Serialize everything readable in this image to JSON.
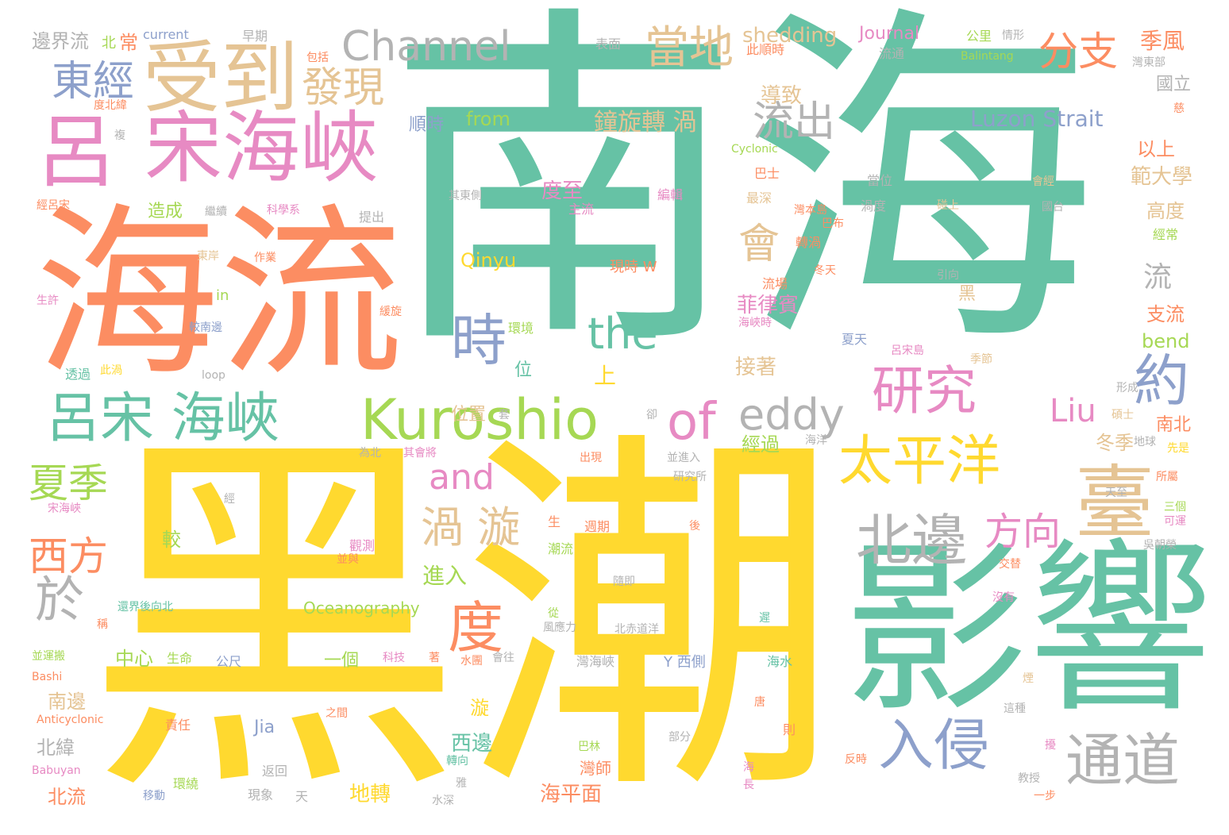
{
  "palette": {
    "green": "#66c2a5",
    "yellow": "#ffd92f",
    "orange": "#fc8d62",
    "pink": "#e78ac3",
    "blue": "#8da0cb",
    "lime": "#a6d854",
    "tan": "#e5c494",
    "gray": "#b3b3b3"
  },
  "words": [
    {
      "t": "南海",
      "c": "green"
    },
    {
      "t": "黑潮",
      "c": "yellow"
    },
    {
      "t": "海流",
      "c": "orange"
    },
    {
      "t": "影響",
      "c": "green"
    },
    {
      "t": "宋海峽",
      "c": "pink"
    },
    {
      "t": "受到",
      "c": "tan"
    },
    {
      "t": "呂",
      "c": "pink"
    },
    {
      "t": "Channel",
      "c": "gray"
    },
    {
      "t": "東經",
      "c": "blue"
    },
    {
      "t": "發現",
      "c": "tan"
    },
    {
      "t": "當地",
      "c": "tan"
    },
    {
      "t": "分支",
      "c": "orange"
    },
    {
      "t": "季風",
      "c": "orange"
    },
    {
      "t": "邊界流",
      "c": "gray"
    },
    {
      "t": "北",
      "c": "lime"
    },
    {
      "t": "常",
      "c": "orange"
    },
    {
      "t": "current",
      "c": "blue"
    },
    {
      "t": "早期",
      "c": "gray"
    },
    {
      "t": "shedding",
      "c": "tan"
    },
    {
      "t": "Journal",
      "c": "pink"
    },
    {
      "t": "公里",
      "c": "lime"
    },
    {
      "t": "情形",
      "c": "gray"
    },
    {
      "t": "表面",
      "c": "gray"
    },
    {
      "t": "包括",
      "c": "orange"
    },
    {
      "t": "此順時",
      "c": "orange"
    },
    {
      "t": "流通",
      "c": "gray"
    },
    {
      "t": "Balintang",
      "c": "lime"
    },
    {
      "t": "灣東部",
      "c": "gray"
    },
    {
      "t": "國立",
      "c": "gray"
    },
    {
      "t": "導致",
      "c": "tan"
    },
    {
      "t": "流出",
      "c": "gray"
    },
    {
      "t": "Luzon Strait",
      "c": "blue"
    },
    {
      "t": "鐘旋轉 渦",
      "c": "tan"
    },
    {
      "t": "順時",
      "c": "blue"
    },
    {
      "t": "from",
      "c": "lime"
    },
    {
      "t": "度北緯",
      "c": "orange"
    },
    {
      "t": "以上",
      "c": "orange"
    },
    {
      "t": "範大學",
      "c": "tan"
    },
    {
      "t": "Cyclonic",
      "c": "lime"
    },
    {
      "t": "巴士",
      "c": "orange"
    },
    {
      "t": "當位",
      "c": "gray"
    },
    {
      "t": "其東側",
      "c": "gray"
    },
    {
      "t": "度至",
      "c": "pink"
    },
    {
      "t": "編輯",
      "c": "pink"
    },
    {
      "t": "會經",
      "c": "tan"
    },
    {
      "t": "造成",
      "c": "lime"
    },
    {
      "t": "主流",
      "c": "pink"
    },
    {
      "t": "最深",
      "c": "tan"
    },
    {
      "t": "渦度",
      "c": "gray"
    },
    {
      "t": "灣本島",
      "c": "orange"
    },
    {
      "t": "碰上",
      "c": "tan"
    },
    {
      "t": "國台",
      "c": "gray"
    },
    {
      "t": "高度",
      "c": "tan"
    },
    {
      "t": "經呂宋",
      "c": "orange"
    },
    {
      "t": "繼續",
      "c": "gray"
    },
    {
      "t": "科學系",
      "c": "pink"
    },
    {
      "t": "提出",
      "c": "gray"
    },
    {
      "t": "巴布",
      "c": "orange"
    },
    {
      "t": "經常",
      "c": "lime"
    },
    {
      "t": "會",
      "c": "tan"
    },
    {
      "t": "轉渦",
      "c": "orange"
    },
    {
      "t": "Qinyu",
      "c": "yellow"
    },
    {
      "t": "東岸",
      "c": "tan"
    },
    {
      "t": "作業",
      "c": "orange"
    },
    {
      "t": "現時 W",
      "c": "orange"
    },
    {
      "t": "冬天",
      "c": "orange"
    },
    {
      "t": "引向",
      "c": "gray"
    },
    {
      "t": "流",
      "c": "gray"
    },
    {
      "t": "生許",
      "c": "pink"
    },
    {
      "t": "in",
      "c": "lime"
    },
    {
      "t": "流場",
      "c": "orange"
    },
    {
      "t": "菲律賓",
      "c": "pink"
    },
    {
      "t": "黑",
      "c": "tan"
    },
    {
      "t": "支流",
      "c": "orange"
    },
    {
      "t": "緩旋",
      "c": "orange"
    },
    {
      "t": "時",
      "c": "blue"
    },
    {
      "t": "the",
      "c": "green"
    },
    {
      "t": "海峽時",
      "c": "pink"
    },
    {
      "t": "夏天",
      "c": "blue"
    },
    {
      "t": "bend",
      "c": "lime"
    },
    {
      "t": "較南邊",
      "c": "blue"
    },
    {
      "t": "環境",
      "c": "lime"
    },
    {
      "t": "呂宋島",
      "c": "pink"
    },
    {
      "t": "季節",
      "c": "tan"
    },
    {
      "t": "透過",
      "c": "green"
    },
    {
      "t": "此渦",
      "c": "yellow"
    },
    {
      "t": "loop",
      "c": "gray"
    },
    {
      "t": "位",
      "c": "green"
    },
    {
      "t": "上",
      "c": "yellow"
    },
    {
      "t": "接著",
      "c": "tan"
    },
    {
      "t": "形成",
      "c": "gray"
    },
    {
      "t": "約",
      "c": "blue"
    },
    {
      "t": "研究",
      "c": "pink"
    },
    {
      "t": "Liu",
      "c": "pink"
    },
    {
      "t": "呂宋 海峽",
      "c": "green"
    },
    {
      "t": "Kuroshio",
      "c": "lime"
    },
    {
      "t": "of",
      "c": "pink"
    },
    {
      "t": "eddy",
      "c": "gray"
    },
    {
      "t": "位置",
      "c": "tan"
    },
    {
      "t": "卻",
      "c": "gray"
    },
    {
      "t": "碩士",
      "c": "tan"
    },
    {
      "t": "海洋",
      "c": "gray"
    },
    {
      "t": "地球",
      "c": "gray"
    },
    {
      "t": "南北",
      "c": "orange"
    },
    {
      "t": "為北",
      "c": "gray"
    },
    {
      "t": "其會將",
      "c": "pink"
    },
    {
      "t": "出現",
      "c": "orange"
    },
    {
      "t": "並進入",
      "c": "gray"
    },
    {
      "t": "經過",
      "c": "lime"
    },
    {
      "t": "冬季",
      "c": "tan"
    },
    {
      "t": "先是",
      "c": "yellow"
    },
    {
      "t": "夏季",
      "c": "lime"
    },
    {
      "t": "and",
      "c": "pink"
    },
    {
      "t": "太平洋",
      "c": "yellow"
    },
    {
      "t": "臺",
      "c": "tan"
    },
    {
      "t": "研究所",
      "c": "gray"
    },
    {
      "t": "天至",
      "c": "gray"
    },
    {
      "t": "所屬",
      "c": "orange"
    },
    {
      "t": "宋海峽",
      "c": "pink"
    },
    {
      "t": "經",
      "c": "gray"
    },
    {
      "t": "渦 漩",
      "c": "tan"
    },
    {
      "t": "北邊",
      "c": "gray"
    },
    {
      "t": "方向",
      "c": "pink"
    },
    {
      "t": "三個",
      "c": "lime"
    },
    {
      "t": "可運",
      "c": "pink"
    },
    {
      "t": "西方",
      "c": "orange"
    },
    {
      "t": "較",
      "c": "lime"
    },
    {
      "t": "觀測",
      "c": "pink"
    },
    {
      "t": "生",
      "c": "orange"
    },
    {
      "t": "週期",
      "c": "orange"
    },
    {
      "t": "後",
      "c": "orange"
    },
    {
      "t": "潮流",
      "c": "lime"
    },
    {
      "t": "吳朝榮",
      "c": "gray"
    },
    {
      "t": "於",
      "c": "gray"
    },
    {
      "t": "並與",
      "c": "orange"
    },
    {
      "t": "進入",
      "c": "lime"
    },
    {
      "t": "隨即",
      "c": "gray"
    },
    {
      "t": "交替",
      "c": "orange"
    },
    {
      "t": "Oceanography",
      "c": "lime"
    },
    {
      "t": "沒有",
      "c": "pink"
    },
    {
      "t": "還界後向北",
      "c": "green"
    },
    {
      "t": "從",
      "c": "lime"
    },
    {
      "t": "遲",
      "c": "green"
    },
    {
      "t": "稱",
      "c": "orange"
    },
    {
      "t": "度",
      "c": "orange"
    },
    {
      "t": "風應力",
      "c": "gray"
    },
    {
      "t": "北赤道洋",
      "c": "gray"
    },
    {
      "t": "入侵",
      "c": "blue"
    },
    {
      "t": "通道",
      "c": "gray"
    },
    {
      "t": "中心",
      "c": "lime"
    },
    {
      "t": "生命",
      "c": "lime"
    },
    {
      "t": "公尺",
      "c": "blue"
    },
    {
      "t": "一個",
      "c": "lime"
    },
    {
      "t": "科技",
      "c": "pink"
    },
    {
      "t": "著",
      "c": "orange"
    },
    {
      "t": "水團",
      "c": "orange"
    },
    {
      "t": "會往",
      "c": "gray"
    },
    {
      "t": "灣海峽",
      "c": "gray"
    },
    {
      "t": "Y 西側",
      "c": "blue"
    },
    {
      "t": "海水",
      "c": "green"
    },
    {
      "t": "並運搬",
      "c": "lime"
    },
    {
      "t": "Bashi",
      "c": "orange"
    },
    {
      "t": "南邊",
      "c": "tan"
    },
    {
      "t": "漩",
      "c": "yellow"
    },
    {
      "t": "唐",
      "c": "orange"
    },
    {
      "t": "這種",
      "c": "gray"
    },
    {
      "t": "Anticyclonic",
      "c": "orange"
    },
    {
      "t": "責任",
      "c": "orange"
    },
    {
      "t": "之間",
      "c": "orange"
    },
    {
      "t": "Jia",
      "c": "blue"
    },
    {
      "t": "西邊",
      "c": "green"
    },
    {
      "t": "部分",
      "c": "gray"
    },
    {
      "t": "則",
      "c": "orange"
    },
    {
      "t": "北緯",
      "c": "gray"
    },
    {
      "t": "巴林",
      "c": "lime"
    },
    {
      "t": "Babuyan",
      "c": "pink"
    },
    {
      "t": "返回",
      "c": "gray"
    },
    {
      "t": "轉向",
      "c": "green"
    },
    {
      "t": "灣師",
      "c": "orange"
    },
    {
      "t": "海",
      "c": "pink"
    },
    {
      "t": "長",
      "c": "pink"
    },
    {
      "t": "反時",
      "c": "orange"
    },
    {
      "t": "環繞",
      "c": "lime"
    },
    {
      "t": "北流",
      "c": "orange"
    },
    {
      "t": "移動",
      "c": "blue"
    },
    {
      "t": "現象",
      "c": "gray"
    },
    {
      "t": "天",
      "c": "gray"
    },
    {
      "t": "雅",
      "c": "gray"
    },
    {
      "t": "水深",
      "c": "gray"
    },
    {
      "t": "地轉",
      "c": "yellow"
    },
    {
      "t": "海平面",
      "c": "orange"
    },
    {
      "t": "教授",
      "c": "gray"
    },
    {
      "t": "一步",
      "c": "orange"
    },
    {
      "t": "複",
      "c": "gray"
    },
    {
      "t": "慈",
      "c": "orange"
    },
    {
      "t": "擾",
      "c": "pink"
    },
    {
      "t": "煙",
      "c": "tan"
    },
    {
      "t": "套",
      "c": "gray"
    }
  ]
}
